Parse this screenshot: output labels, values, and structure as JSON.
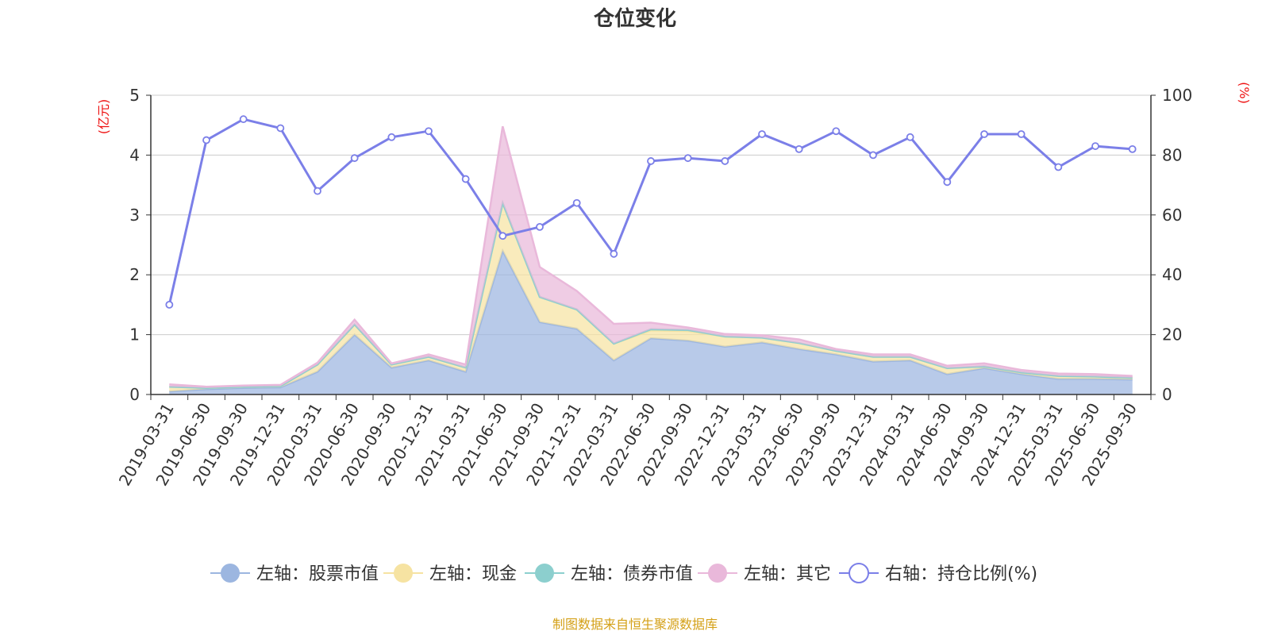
{
  "chart_data": {
    "type": "area",
    "title": "仓位变化",
    "left_axis_unit": "(亿元)",
    "right_axis_unit": "(%)",
    "left_ylim": [
      0,
      5
    ],
    "right_ylim": [
      0,
      100
    ],
    "left_ticks": [
      "0",
      "1",
      "2",
      "3",
      "4",
      "5"
    ],
    "right_ticks": [
      "0",
      "20",
      "40",
      "60",
      "80",
      "100"
    ],
    "categories": [
      "2019-03-31",
      "2019-06-30",
      "2019-09-30",
      "2019-12-31",
      "2020-03-31",
      "2020-06-30",
      "2020-09-30",
      "2020-12-31",
      "2021-03-31",
      "2021-06-30",
      "2021-09-30",
      "2021-12-31",
      "2022-03-31",
      "2022-06-30",
      "2022-09-30",
      "2022-12-31",
      "2023-03-31",
      "2023-06-30",
      "2023-09-30",
      "2023-12-31",
      "2024-03-31",
      "2024-06-30",
      "2024-09-30",
      "2024-12-31",
      "2025-03-31",
      "2025-06-30",
      "2025-09-30"
    ],
    "series": [
      {
        "name": "左轴：股票市值",
        "axis": "left",
        "kind": "stack",
        "color": "#9cb6e0",
        "values": [
          0.05,
          0.09,
          0.11,
          0.12,
          0.38,
          1.0,
          0.45,
          0.57,
          0.38,
          2.4,
          1.21,
          1.1,
          0.57,
          0.94,
          0.9,
          0.8,
          0.87,
          0.76,
          0.67,
          0.55,
          0.57,
          0.34,
          0.44,
          0.34,
          0.26,
          0.26,
          0.25
        ]
      },
      {
        "name": "左轴：现金",
        "axis": "left",
        "kind": "stack",
        "color": "#f6e3a2",
        "values": [
          0.08,
          0.02,
          0.02,
          0.02,
          0.12,
          0.17,
          0.05,
          0.06,
          0.07,
          0.8,
          0.42,
          0.32,
          0.28,
          0.13,
          0.16,
          0.17,
          0.08,
          0.1,
          0.06,
          0.08,
          0.06,
          0.1,
          0.03,
          0.03,
          0.05,
          0.04,
          0.03
        ]
      },
      {
        "name": "左轴：债券市值",
        "axis": "left",
        "kind": "stack",
        "color": "#8ccfce",
        "values": [
          0,
          0,
          0,
          0,
          0,
          0,
          0,
          0,
          0,
          0,
          0,
          0,
          0,
          0.02,
          0.02,
          0,
          0,
          0,
          0,
          0,
          0,
          0,
          0,
          0,
          0,
          0,
          0
        ]
      },
      {
        "name": "左轴：其它",
        "axis": "left",
        "kind": "stack",
        "color": "#e9b8da",
        "values": [
          0.04,
          0.02,
          0.02,
          0.02,
          0.03,
          0.08,
          0.02,
          0.04,
          0.05,
          1.28,
          0.5,
          0.31,
          0.33,
          0.11,
          0.04,
          0.04,
          0.04,
          0.06,
          0.03,
          0.04,
          0.04,
          0.04,
          0.05,
          0.04,
          0.04,
          0.04,
          0.03
        ]
      },
      {
        "name": "右轴：持仓比例(%)",
        "axis": "right",
        "kind": "line",
        "color": "#7b7fe8",
        "values": [
          30,
          85,
          92,
          89,
          68,
          79,
          86,
          88,
          72,
          53,
          56,
          64,
          47,
          78,
          79,
          78,
          87,
          82,
          88,
          80,
          86,
          71,
          87,
          87,
          76,
          83,
          82
        ]
      }
    ]
  },
  "colors": {
    "grid": "#cccccc",
    "axis": "#333333",
    "unit_text": "#ee1111",
    "source_text": "#d4a017"
  },
  "source_note": "制图数据来自恒生聚源数据库"
}
